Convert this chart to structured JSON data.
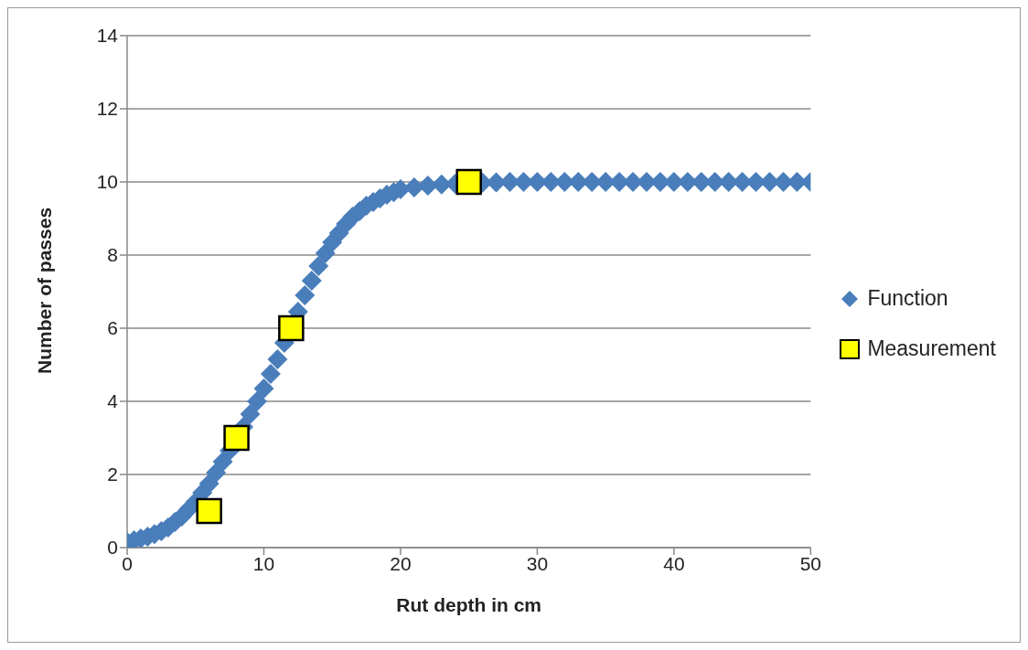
{
  "chart_data": {
    "type": "scatter",
    "xlabel": "Rut depth in cm",
    "ylabel": "Number of passes",
    "xlim": [
      0,
      50
    ],
    "xticks": [
      0,
      10,
      20,
      30,
      40,
      50
    ],
    "ylim": [
      0,
      14
    ],
    "yticks": [
      0,
      2,
      4,
      6,
      8,
      10,
      12,
      14
    ],
    "grid": "y",
    "legend": "right",
    "series": [
      {
        "name": "Function",
        "color": "#4a7ebb",
        "marker": "diamond",
        "x": [
          0,
          0.5,
          1,
          1.5,
          2,
          2.5,
          3,
          3.5,
          4,
          4.5,
          5,
          5.5,
          6,
          6.5,
          7,
          7.5,
          8,
          8.5,
          9,
          9.5,
          10,
          10.5,
          11,
          11.5,
          12,
          12.5,
          13,
          13.5,
          14,
          14.5,
          15,
          15.5,
          16,
          16.5,
          17,
          17.5,
          18,
          18.5,
          19,
          19.5,
          20,
          21,
          22,
          23,
          24,
          25,
          26,
          27,
          28,
          29,
          30,
          31,
          32,
          33,
          34,
          35,
          36,
          37,
          38,
          39,
          40,
          41,
          42,
          43,
          44,
          45,
          46,
          47,
          48,
          49,
          50
        ],
        "values": [
          0.15,
          0.2,
          0.25,
          0.3,
          0.37,
          0.45,
          0.55,
          0.7,
          0.85,
          1.05,
          1.25,
          1.5,
          1.75,
          2.05,
          2.35,
          2.65,
          null,
          3.3,
          3.65,
          4.0,
          4.35,
          4.75,
          5.15,
          5.6,
          null,
          6.45,
          6.9,
          7.3,
          7.7,
          8.05,
          8.35,
          8.6,
          8.85,
          9.05,
          9.2,
          9.35,
          9.45,
          9.55,
          9.65,
          9.72,
          9.8,
          9.85,
          9.9,
          9.93,
          9.95,
          null,
          9.98,
          9.99,
          10,
          10,
          10,
          10,
          10,
          10,
          10,
          10,
          10,
          10,
          10,
          10,
          10,
          10,
          10,
          10,
          10,
          10,
          10,
          10,
          10,
          10,
          10
        ]
      },
      {
        "name": "Measurement",
        "color": "#ffff00",
        "marker": "square",
        "x": [
          6,
          8,
          12,
          25
        ],
        "values": [
          1,
          3,
          6,
          10
        ]
      }
    ]
  }
}
